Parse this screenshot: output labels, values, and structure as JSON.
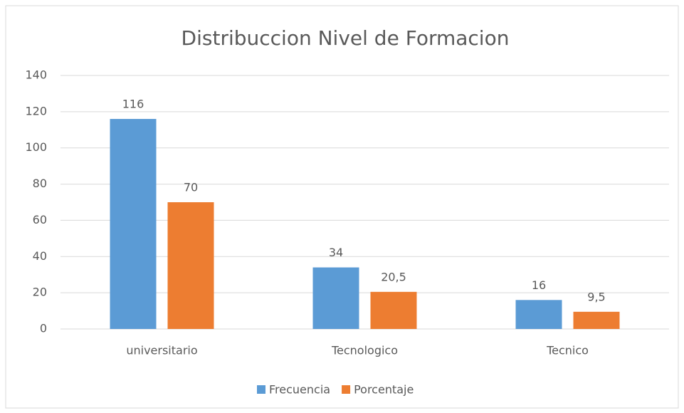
{
  "chart_data": {
    "type": "bar",
    "title": "Distribuccion Nivel de Formacion",
    "categories": [
      "universitario",
      "Tecnologico",
      "Tecnico"
    ],
    "series": [
      {
        "name": "Frecuencia",
        "color": "#5b9bd5",
        "values": [
          116,
          34,
          16
        ],
        "value_labels": [
          "116",
          "34",
          "16"
        ]
      },
      {
        "name": "Porcentaje",
        "color": "#ed7d31",
        "values": [
          70,
          20.5,
          9.5
        ],
        "value_labels": [
          "70",
          "20,5",
          "9,5"
        ]
      }
    ],
    "ylim": [
      0,
      140
    ],
    "yticks": [
      0,
      20,
      40,
      60,
      80,
      100,
      120,
      140
    ],
    "grid": true,
    "legend": "bottom"
  }
}
